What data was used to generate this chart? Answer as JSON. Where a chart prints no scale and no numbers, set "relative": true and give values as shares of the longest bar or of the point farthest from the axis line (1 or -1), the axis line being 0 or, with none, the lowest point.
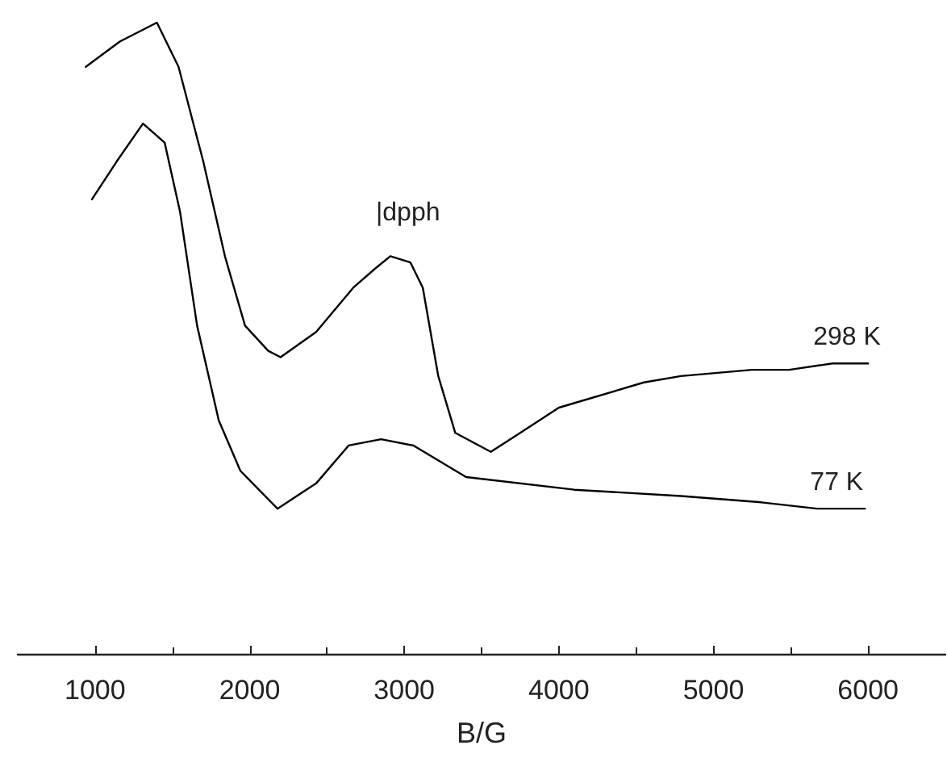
{
  "chart_data": {
    "type": "line",
    "relative": true,
    "xlabel": "B/G",
    "xlim": [
      500,
      6500
    ],
    "xticks": [
      1000,
      2000,
      3000,
      4000,
      5000,
      6000
    ],
    "tick_labels": "x",
    "legend": false,
    "marker": "none",
    "line_style": "solid",
    "annotations": [
      "|dpph"
    ],
    "series": [
      {
        "name": "298 K",
        "color": "#000000",
        "x": [
          940,
          1160,
          1400,
          1540,
          1700,
          1840,
          1970,
          2120,
          2200,
          2430,
          2670,
          2810,
          2910,
          3040,
          3120,
          3220,
          3330,
          3560,
          3750,
          4000,
          4550,
          4790,
          5250,
          5490,
          5770,
          6000
        ],
        "values": [
          0.93,
          0.97,
          1,
          0.93,
          0.78,
          0.63,
          0.52,
          0.48,
          0.47,
          0.51,
          0.58,
          0.61,
          0.63,
          0.62,
          0.58,
          0.44,
          0.35,
          0.32,
          0.35,
          0.39,
          0.43,
          0.44,
          0.45,
          0.45,
          0.46,
          0.46
        ]
      },
      {
        "name": "77 K",
        "color": "#000000",
        "x": [
          980,
          1140,
          1310,
          1450,
          1550,
          1660,
          1800,
          1940,
          2180,
          2430,
          2640,
          2850,
          3060,
          3400,
          4100,
          4790,
          5310,
          5670,
          5980
        ],
        "values": [
          0.72,
          0.78,
          0.84,
          0.81,
          0.7,
          0.52,
          0.37,
          0.29,
          0.23,
          0.27,
          0.33,
          0.34,
          0.33,
          0.28,
          0.26,
          0.25,
          0.24,
          0.23,
          0.23
        ]
      }
    ]
  }
}
